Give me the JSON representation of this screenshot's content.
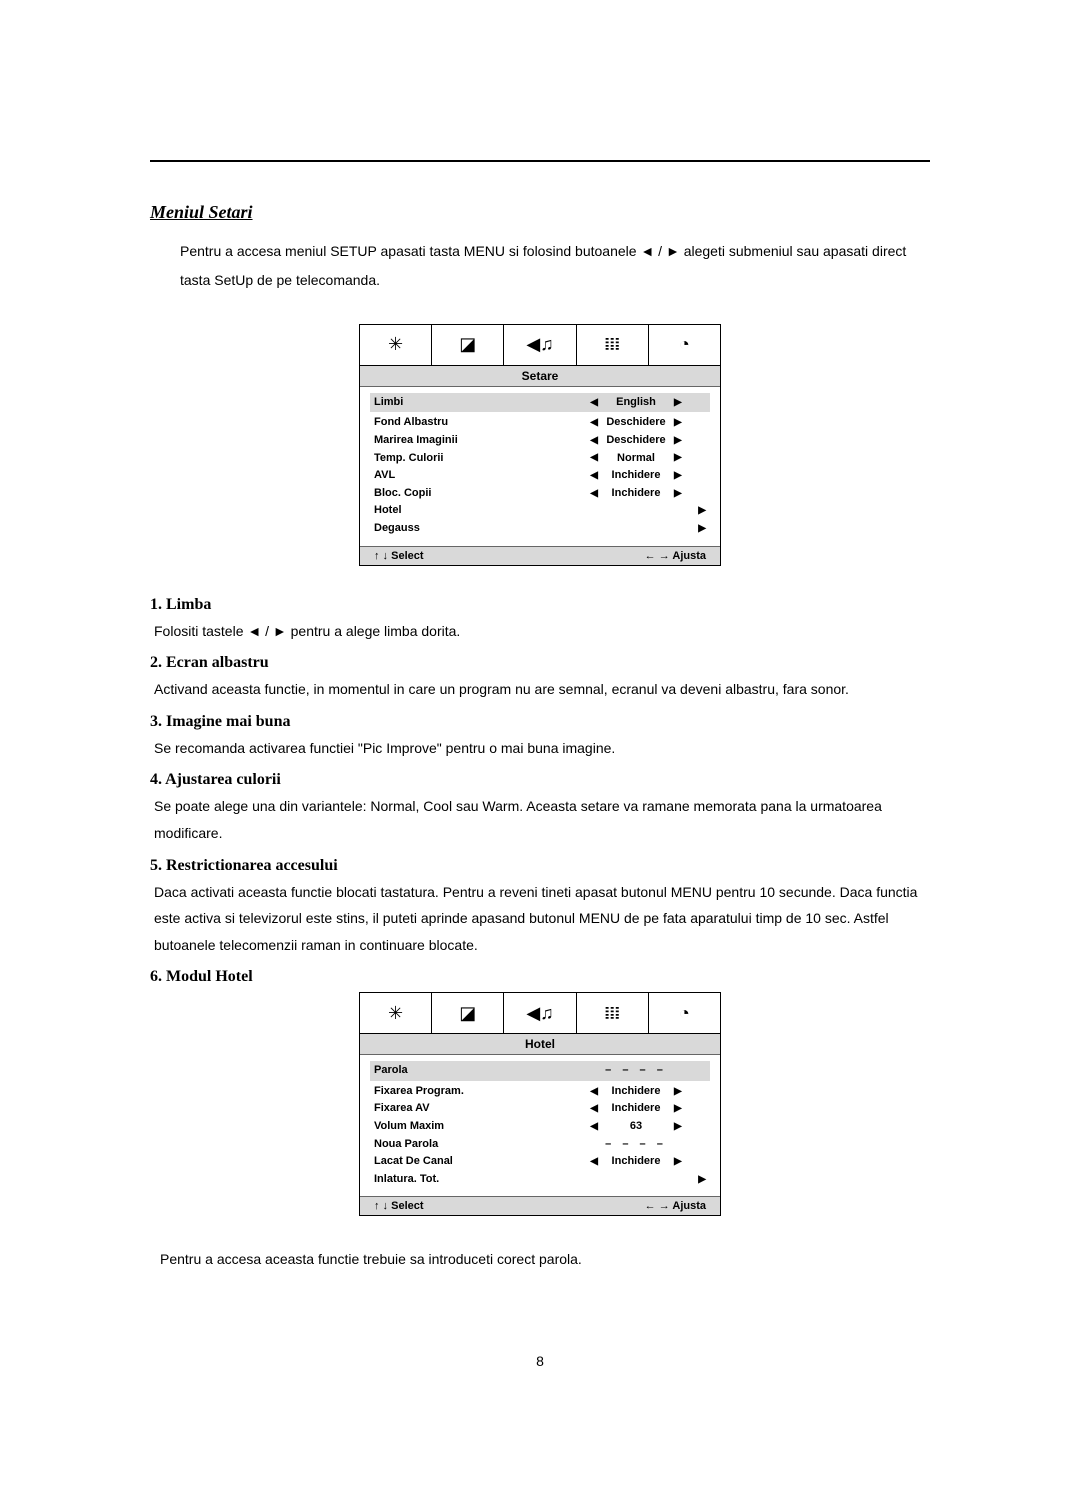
{
  "title": "Meniul Setari",
  "intro": "Pentru a accesa meniul SETUP apasati tasta MENU si folosind butoanele ◄ / ► alegeti submeniul sau apasati direct tasta SetUp de pe telecomanda.",
  "menu1": {
    "header": "Setare",
    "rows": [
      {
        "label": "Limbi",
        "value": "English",
        "highlight": true,
        "showArrows": true
      },
      {
        "label": "Fond Albastru",
        "value": "Deschidere",
        "highlight": false,
        "showArrows": true
      },
      {
        "label": "Marirea Imaginii",
        "value": "Deschidere",
        "highlight": false,
        "showArrows": true
      },
      {
        "label": "Temp. Culorii",
        "value": "Normal",
        "highlight": false,
        "showArrows": true
      },
      {
        "label": "AVL",
        "value": "Inchidere",
        "highlight": false,
        "showArrows": true
      },
      {
        "label": "Bloc. Copii",
        "value": "Inchidere",
        "highlight": false,
        "showArrows": true
      },
      {
        "label": "Hotel",
        "value": "",
        "highlight": false,
        "showArrows": "rightOnly"
      },
      {
        "label": "Degauss",
        "value": "",
        "highlight": false,
        "showArrows": "rightOnly"
      }
    ],
    "footerLeft": "↑ ↓    Select",
    "footerRight": "← →    Ajusta"
  },
  "items": [
    {
      "heading": "1. Limba",
      "body": "Folositi tastele ◄ / ► pentru a alege limba dorita."
    },
    {
      "heading": "2. Ecran albastru",
      "body": "Activand aceasta functie, in momentul in care un program nu are semnal, ecranul va deveni albastru, fara sonor."
    },
    {
      "heading": "3. Imagine mai buna",
      "body": "Se recomanda activarea functiei \"Pic Improve\" pentru o mai buna imagine."
    },
    {
      "heading": "4. Ajustarea culorii",
      "body": "Se poate alege una din variantele: Normal, Cool sau Warm. Aceasta setare va ramane memorata pana la urmatoarea modificare."
    },
    {
      "heading": "5. Restrictionarea accesului",
      "body": "Daca activati aceasta functie blocati tastatura. Pentru a reveni tineti apasat butonul MENU pentru 10 secunde. Daca functia este activa si televizorul este stins, il puteti aprinde apasand butonul MENU de pe fata aparatului timp de 10 sec. Astfel butoanele telecomenzii raman in continuare blocate."
    },
    {
      "heading": "6. Modul Hotel",
      "body": ""
    }
  ],
  "menu2": {
    "header": "Hotel",
    "rows": [
      {
        "label": "Parola",
        "value": "– – – –",
        "highlight": true,
        "showArrows": false,
        "dash": true
      },
      {
        "label": "Fixarea Program.",
        "value": "Inchidere",
        "highlight": false,
        "showArrows": true
      },
      {
        "label": "Fixarea AV",
        "value": "Inchidere",
        "highlight": false,
        "showArrows": true
      },
      {
        "label": "Volum Maxim",
        "value": "63",
        "highlight": false,
        "showArrows": true
      },
      {
        "label": "Noua Parola",
        "value": "– – – –",
        "highlight": false,
        "showArrows": false,
        "dash": true
      },
      {
        "label": "Lacat De Canal",
        "value": "Inchidere",
        "highlight": false,
        "showArrows": true
      },
      {
        "label": "Inlatura. Tot.",
        "value": "",
        "highlight": false,
        "showArrows": "rightOnly"
      }
    ],
    "footerLeft": "↑ ↓    Select",
    "footerRight": "← →    Ajusta"
  },
  "closing": "Pentru a accesa aceasta functie trebuie sa introduceti corect parola.",
  "pageNumber": "8",
  "tabIcons": [
    "✳",
    "◪",
    "◀♫",
    "𝍖",
    "◔"
  ],
  "colors": {
    "highlight": "#d9d9d9",
    "text": "#000000",
    "background": "#ffffff"
  }
}
